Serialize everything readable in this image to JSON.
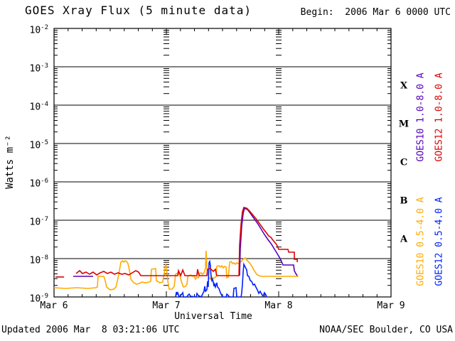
{
  "header": {
    "title": "GOES Xray Flux (5 minute data)",
    "begin_label": "Begin:  2006 Mar 6 0000 UTC"
  },
  "footer": {
    "updated": "Updated 2006 Mar  8 03:21:06 UTC",
    "source": "NOAA/SEC Boulder, CO USA"
  },
  "colors": {
    "background": "#ffffff",
    "axis": "#000000",
    "goes10_long": "#5500bb",
    "goes12_long": "#dd0000",
    "goes10_short": "#ffaa00",
    "goes12_short": "#0022ff"
  },
  "chart_data": {
    "type": "line",
    "title": "GOES Xray Flux (5 minute data)",
    "xlabel": "Universal Time",
    "ylabel": "Watts m⁻²",
    "x_range_days": 3,
    "x_tick_labels": [
      "Mar 6",
      "Mar 7",
      "Mar 8",
      "Mar 9"
    ],
    "y_tick_exponents": [
      -2,
      -3,
      -4,
      -5,
      -6,
      -7,
      -8,
      -9
    ],
    "ylim": [
      "1e-9",
      "1e-2"
    ],
    "grid": "solid horizontal lines at each decade; columns of log minor tick dashes at interior day boundaries",
    "legend_position": "right, rotated 90deg",
    "flare_classes": [
      "X",
      "M",
      "C",
      "B",
      "A"
    ],
    "series": [
      {
        "name": "GOES10 1.0-8.0 A",
        "color": "#5500bb",
        "segments": [
          [
            [
              0.171,
              -8.463
            ],
            [
              0.348,
              -8.463
            ]
          ],
          [
            [
              1.652,
              -8.444
            ],
            [
              1.658,
              -7.741
            ],
            [
              1.671,
              -7.148
            ],
            [
              1.684,
              -6.815
            ],
            [
              1.696,
              -6.685
            ],
            [
              1.722,
              -6.722
            ],
            [
              1.747,
              -6.815
            ],
            [
              1.778,
              -6.944
            ],
            [
              1.81,
              -7.074
            ],
            [
              1.842,
              -7.222
            ],
            [
              1.873,
              -7.37
            ],
            [
              1.899,
              -7.481
            ],
            [
              1.918,
              -7.556
            ],
            [
              1.937,
              -7.63
            ],
            [
              1.956,
              -7.722
            ],
            [
              1.975,
              -7.815
            ],
            [
              1.994,
              -7.907
            ],
            [
              2.013,
              -8.0
            ],
            [
              2.025,
              -8.074
            ],
            [
              2.038,
              -8.167
            ],
            [
              2.133,
              -8.167
            ],
            [
              2.139,
              -8.315
            ],
            [
              2.152,
              -8.389
            ],
            [
              2.165,
              -8.444
            ]
          ]
        ]
      },
      {
        "name": "GOES12 1.0-8.0 A",
        "color": "#dd0000",
        "segments": [
          [
            [
              0.013,
              -8.48
            ],
            [
              0.09,
              -8.48
            ]
          ],
          [
            [
              0.196,
              -8.389
            ],
            [
              0.228,
              -8.315
            ],
            [
              0.253,
              -8.389
            ],
            [
              0.285,
              -8.352
            ],
            [
              0.316,
              -8.407
            ],
            [
              0.348,
              -8.352
            ],
            [
              0.38,
              -8.426
            ],
            [
              0.411,
              -8.37
            ],
            [
              0.443,
              -8.333
            ],
            [
              0.475,
              -8.389
            ],
            [
              0.506,
              -8.352
            ],
            [
              0.538,
              -8.407
            ],
            [
              0.57,
              -8.37
            ],
            [
              0.601,
              -8.407
            ],
            [
              0.633,
              -8.389
            ],
            [
              0.665,
              -8.426
            ],
            [
              0.696,
              -8.37
            ],
            [
              0.728,
              -8.315
            ],
            [
              0.753,
              -8.352
            ],
            [
              0.772,
              -8.444
            ],
            [
              1.101,
              -8.444
            ],
            [
              1.108,
              -8.315
            ],
            [
              1.127,
              -8.444
            ],
            [
              1.146,
              -8.296
            ],
            [
              1.165,
              -8.444
            ],
            [
              1.272,
              -8.444
            ],
            [
              1.278,
              -8.278
            ],
            [
              1.291,
              -8.444
            ],
            [
              1.361,
              -8.444
            ],
            [
              1.367,
              -8.278
            ],
            [
              1.392,
              -8.259
            ],
            [
              1.418,
              -8.333
            ],
            [
              1.437,
              -8.278
            ],
            [
              1.449,
              -8.444
            ],
            [
              1.646,
              -8.444
            ],
            [
              1.652,
              -7.648
            ],
            [
              1.665,
              -7.093
            ],
            [
              1.677,
              -6.778
            ],
            [
              1.69,
              -6.667
            ],
            [
              1.715,
              -6.685
            ],
            [
              1.741,
              -6.759
            ],
            [
              1.772,
              -6.87
            ],
            [
              1.804,
              -6.981
            ],
            [
              1.835,
              -7.111
            ],
            [
              1.867,
              -7.241
            ],
            [
              1.892,
              -7.333
            ],
            [
              1.911,
              -7.407
            ],
            [
              1.93,
              -7.444
            ],
            [
              1.949,
              -7.519
            ],
            [
              1.975,
              -7.611
            ],
            [
              1.987,
              -7.667
            ],
            [
              2.0,
              -7.759
            ],
            [
              2.082,
              -7.759
            ],
            [
              2.089,
              -7.833
            ],
            [
              2.139,
              -7.833
            ],
            [
              2.139,
              -8.019
            ],
            [
              2.165,
              -8.019
            ],
            [
              2.165,
              -8.093
            ]
          ]
        ]
      },
      {
        "name": "GOES10 0.5-4.0 A",
        "color": "#ffaa00",
        "segments": [
          [
            [
              0.0,
              -8.759
            ],
            [
              0.101,
              -8.778
            ],
            [
              0.203,
              -8.759
            ],
            [
              0.304,
              -8.778
            ],
            [
              0.373,
              -8.759
            ],
            [
              0.386,
              -8.741
            ],
            [
              0.392,
              -8.463
            ],
            [
              0.443,
              -8.463
            ],
            [
              0.456,
              -8.574
            ],
            [
              0.468,
              -8.741
            ],
            [
              0.5,
              -8.815
            ],
            [
              0.532,
              -8.796
            ],
            [
              0.551,
              -8.741
            ],
            [
              0.57,
              -8.5
            ],
            [
              0.582,
              -8.315
            ],
            [
              0.595,
              -8.093
            ],
            [
              0.608,
              -8.056
            ],
            [
              0.62,
              -8.093
            ],
            [
              0.633,
              -8.056
            ],
            [
              0.646,
              -8.074
            ],
            [
              0.658,
              -8.13
            ],
            [
              0.671,
              -8.296
            ],
            [
              0.684,
              -8.537
            ],
            [
              0.709,
              -8.63
            ],
            [
              0.734,
              -8.667
            ],
            [
              0.759,
              -8.648
            ],
            [
              0.785,
              -8.611
            ],
            [
              0.816,
              -8.63
            ],
            [
              0.848,
              -8.611
            ],
            [
              0.861,
              -8.593
            ],
            [
              0.867,
              -8.278
            ],
            [
              0.905,
              -8.259
            ],
            [
              0.911,
              -8.574
            ],
            [
              0.943,
              -8.63
            ],
            [
              0.968,
              -8.611
            ],
            [
              0.981,
              -8.389
            ],
            [
              0.994,
              -8.13
            ],
            [
              1.0,
              -8.222
            ],
            [
              1.013,
              -8.593
            ],
            [
              1.025,
              -8.796
            ],
            [
              1.051,
              -8.796
            ],
            [
              1.07,
              -8.722
            ],
            [
              1.082,
              -8.407
            ],
            [
              1.101,
              -8.37
            ],
            [
              1.12,
              -8.426
            ],
            [
              1.133,
              -8.593
            ],
            [
              1.152,
              -8.741
            ],
            [
              1.171,
              -8.722
            ],
            [
              1.184,
              -8.667
            ],
            [
              1.19,
              -8.463
            ],
            [
              1.215,
              -8.426
            ],
            [
              1.234,
              -8.463
            ],
            [
              1.247,
              -8.444
            ],
            [
              1.259,
              -8.537
            ],
            [
              1.272,
              -8.481
            ],
            [
              1.285,
              -8.5
            ],
            [
              1.297,
              -8.389
            ],
            [
              1.31,
              -8.37
            ],
            [
              1.323,
              -8.407
            ],
            [
              1.335,
              -8.37
            ],
            [
              1.348,
              -8.259
            ],
            [
              1.354,
              -7.796
            ],
            [
              1.361,
              -8.259
            ],
            [
              1.367,
              -8.389
            ],
            [
              1.38,
              -8.5
            ],
            [
              1.392,
              -8.537
            ],
            [
              1.405,
              -8.481
            ],
            [
              1.418,
              -8.519
            ],
            [
              1.43,
              -8.5
            ],
            [
              1.443,
              -8.463
            ],
            [
              1.449,
              -8.204
            ],
            [
              1.468,
              -8.185
            ],
            [
              1.481,
              -8.222
            ],
            [
              1.494,
              -8.185
            ],
            [
              1.506,
              -8.241
            ],
            [
              1.519,
              -8.204
            ],
            [
              1.532,
              -8.222
            ],
            [
              1.538,
              -8.5
            ],
            [
              1.551,
              -8.481
            ],
            [
              1.563,
              -8.093
            ],
            [
              1.576,
              -8.074
            ],
            [
              1.589,
              -8.13
            ],
            [
              1.601,
              -8.111
            ],
            [
              1.614,
              -8.148
            ],
            [
              1.627,
              -8.111
            ],
            [
              1.639,
              -8.13
            ],
            [
              1.652,
              -8.111
            ],
            [
              1.665,
              -8.074
            ],
            [
              1.677,
              -8.037
            ],
            [
              1.69,
              -8.0
            ],
            [
              1.703,
              -7.981
            ],
            [
              1.715,
              -8.037
            ],
            [
              1.728,
              -8.074
            ],
            [
              1.741,
              -8.111
            ],
            [
              1.753,
              -8.167
            ],
            [
              1.766,
              -8.222
            ],
            [
              1.778,
              -8.296
            ],
            [
              1.791,
              -8.352
            ],
            [
              1.804,
              -8.407
            ],
            [
              1.823,
              -8.444
            ],
            [
              1.848,
              -8.463
            ],
            [
              2.177,
              -8.463
            ]
          ]
        ]
      },
      {
        "name": "GOES12 0.5-4.0 A",
        "color": "#0022ff",
        "segments": [
          [
            [
              1.082,
              -9.0
            ],
            [
              1.089,
              -8.87
            ],
            [
              1.095,
              -8.926
            ],
            [
              1.101,
              -8.889
            ],
            [
              1.114,
              -9.0
            ],
            [
              1.133,
              -8.944
            ],
            [
              1.146,
              -8.889
            ],
            [
              1.152,
              -9.0
            ],
            [
              1.184,
              -9.0
            ],
            [
              1.19,
              -8.963
            ],
            [
              1.203,
              -8.926
            ],
            [
              1.215,
              -8.981
            ],
            [
              1.266,
              -9.0
            ],
            [
              1.272,
              -8.907
            ],
            [
              1.285,
              -8.963
            ],
            [
              1.31,
              -9.0
            ],
            [
              1.335,
              -8.852
            ],
            [
              1.342,
              -8.722
            ],
            [
              1.348,
              -8.852
            ],
            [
              1.361,
              -8.815
            ],
            [
              1.367,
              -8.593
            ],
            [
              1.373,
              -8.741
            ],
            [
              1.38,
              -8.111
            ],
            [
              1.386,
              -8.074
            ],
            [
              1.392,
              -8.185
            ],
            [
              1.399,
              -8.481
            ],
            [
              1.405,
              -8.574
            ],
            [
              1.411,
              -8.537
            ],
            [
              1.418,
              -8.611
            ],
            [
              1.424,
              -8.722
            ],
            [
              1.43,
              -8.667
            ],
            [
              1.437,
              -8.741
            ],
            [
              1.449,
              -8.63
            ],
            [
              1.456,
              -8.741
            ],
            [
              1.468,
              -8.778
            ],
            [
              1.481,
              -8.889
            ],
            [
              1.494,
              -8.963
            ],
            [
              1.506,
              -9.0
            ],
            [
              1.532,
              -9.0
            ],
            [
              1.538,
              -8.926
            ],
            [
              1.551,
              -8.963
            ],
            [
              1.563,
              -9.0
            ],
            [
              1.595,
              -9.0
            ],
            [
              1.601,
              -8.778
            ],
            [
              1.62,
              -8.759
            ],
            [
              1.627,
              -9.0
            ],
            [
              1.665,
              -9.0
            ],
            [
              1.671,
              -8.889
            ],
            [
              1.677,
              -8.667
            ],
            [
              1.684,
              -8.333
            ],
            [
              1.69,
              -8.148
            ],
            [
              1.696,
              -8.185
            ],
            [
              1.709,
              -8.259
            ],
            [
              1.715,
              -8.296
            ],
            [
              1.722,
              -8.444
            ],
            [
              1.734,
              -8.463
            ],
            [
              1.747,
              -8.574
            ],
            [
              1.759,
              -8.593
            ],
            [
              1.772,
              -8.685
            ],
            [
              1.785,
              -8.667
            ],
            [
              1.797,
              -8.741
            ],
            [
              1.81,
              -8.815
            ],
            [
              1.823,
              -8.907
            ],
            [
              1.835,
              -8.852
            ],
            [
              1.848,
              -8.926
            ],
            [
              1.861,
              -8.981
            ],
            [
              1.873,
              -8.889
            ],
            [
              1.886,
              -8.944
            ],
            [
              1.892,
              -9.0
            ]
          ]
        ]
      }
    ]
  }
}
